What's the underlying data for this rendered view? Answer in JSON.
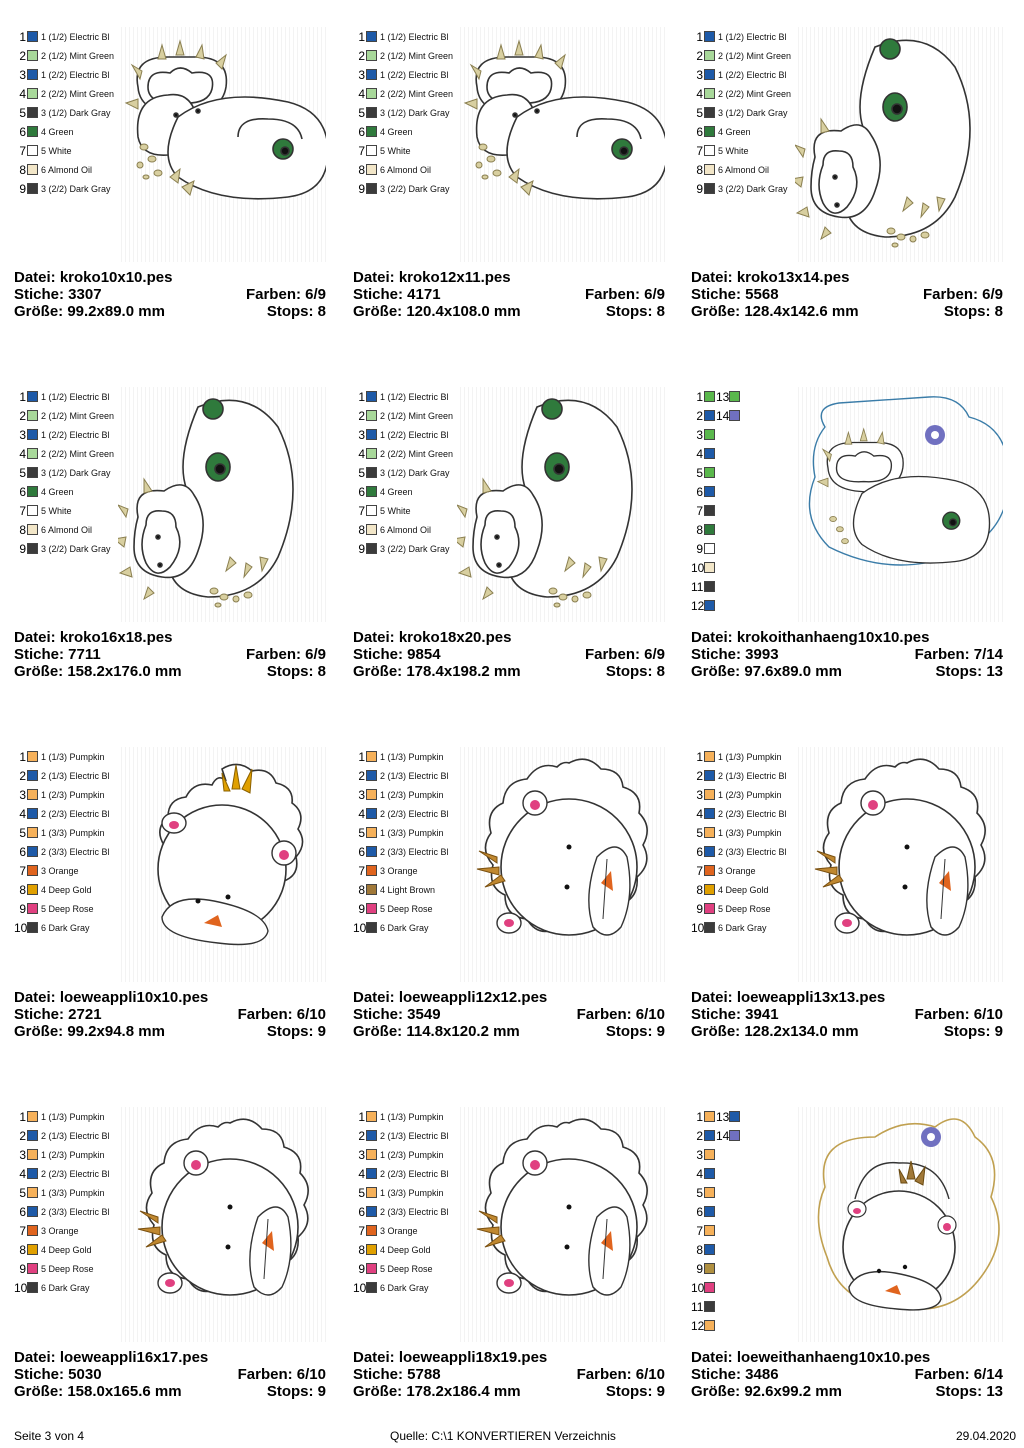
{
  "colors": {
    "blue": "#1e5aa8",
    "mint": "#a8d89a",
    "darkgray": "#3b3b3b",
    "green": "#2f7a3c",
    "white": "#ffffff",
    "almond": "#f2e6c8",
    "pumpkin": "#f6b15a",
    "orange": "#e0641e",
    "gold": "#e0a000",
    "rose": "#e04080",
    "brown": "#a07838",
    "brightgreen": "#5ab84c",
    "purple": "#7070c0",
    "olive": "#b09040"
  },
  "cards": [
    {
      "file": "Datei: kroko10x10.pes",
      "stiche": "Stiche: 3307",
      "farben": "Farben: 6/9",
      "groesse": "Größe: 99.2x89.0 mm",
      "stops": "Stops: 8",
      "art": "kroko-a",
      "list": [
        {
          "n": "1",
          "label": "1 (1/2) Electric Bl",
          "c": "blue"
        },
        {
          "n": "2",
          "label": "2 (1/2) Mint Green",
          "c": "mint"
        },
        {
          "n": "3",
          "label": "1 (2/2) Electric Bl",
          "c": "blue"
        },
        {
          "n": "4",
          "label": "2 (2/2) Mint Green",
          "c": "mint"
        },
        {
          "n": "5",
          "label": "3 (1/2) Dark Gray",
          "c": "darkgray"
        },
        {
          "n": "6",
          "label": "4 Green",
          "c": "green"
        },
        {
          "n": "7",
          "label": "5 White",
          "c": "white"
        },
        {
          "n": "8",
          "label": "6 Almond Oil",
          "c": "almond"
        },
        {
          "n": "9",
          "label": "3 (2/2) Dark Gray",
          "c": "darkgray"
        }
      ]
    },
    {
      "file": "Datei: kroko12x11.pes",
      "stiche": "Stiche: 4171",
      "farben": "Farben: 6/9",
      "groesse": "Größe: 120.4x108.0 mm",
      "stops": "Stops: 8",
      "art": "kroko-a",
      "list": [
        {
          "n": "1",
          "label": "1 (1/2) Electric Bl",
          "c": "blue"
        },
        {
          "n": "2",
          "label": "2 (1/2) Mint Green",
          "c": "mint"
        },
        {
          "n": "3",
          "label": "1 (2/2) Electric Bl",
          "c": "blue"
        },
        {
          "n": "4",
          "label": "2 (2/2) Mint Green",
          "c": "mint"
        },
        {
          "n": "5",
          "label": "3 (1/2) Dark Gray",
          "c": "darkgray"
        },
        {
          "n": "6",
          "label": "4 Green",
          "c": "green"
        },
        {
          "n": "7",
          "label": "5 White",
          "c": "white"
        },
        {
          "n": "8",
          "label": "6 Almond Oil",
          "c": "almond"
        },
        {
          "n": "9",
          "label": "3 (2/2) Dark Gray",
          "c": "darkgray"
        }
      ]
    },
    {
      "file": "Datei: kroko13x14.pes",
      "stiche": "Stiche: 5568",
      "farben": "Farben: 6/9",
      "groesse": "Größe: 128.4x142.6 mm",
      "stops": "Stops: 8",
      "art": "kroko-b",
      "list": [
        {
          "n": "1",
          "label": "1 (1/2) Electric Bl",
          "c": "blue"
        },
        {
          "n": "2",
          "label": "2 (1/2) Mint Green",
          "c": "mint"
        },
        {
          "n": "3",
          "label": "1 (2/2) Electric Bl",
          "c": "blue"
        },
        {
          "n": "4",
          "label": "2 (2/2) Mint Green",
          "c": "mint"
        },
        {
          "n": "5",
          "label": "3 (1/2) Dark Gray",
          "c": "darkgray"
        },
        {
          "n": "6",
          "label": "4 Green",
          "c": "green"
        },
        {
          "n": "7",
          "label": "5 White",
          "c": "white"
        },
        {
          "n": "8",
          "label": "6 Almond Oil",
          "c": "almond"
        },
        {
          "n": "9",
          "label": "3 (2/2) Dark Gray",
          "c": "darkgray"
        }
      ]
    },
    {
      "file": "Datei: kroko16x18.pes",
      "stiche": "Stiche: 7711",
      "farben": "Farben: 6/9",
      "groesse": "Größe: 158.2x176.0 mm",
      "stops": "Stops: 8",
      "art": "kroko-b",
      "list": [
        {
          "n": "1",
          "label": "1 (1/2) Electric Bl",
          "c": "blue"
        },
        {
          "n": "2",
          "label": "2 (1/2) Mint Green",
          "c": "mint"
        },
        {
          "n": "3",
          "label": "1 (2/2) Electric Bl",
          "c": "blue"
        },
        {
          "n": "4",
          "label": "2 (2/2) Mint Green",
          "c": "mint"
        },
        {
          "n": "5",
          "label": "3 (1/2) Dark Gray",
          "c": "darkgray"
        },
        {
          "n": "6",
          "label": "4 Green",
          "c": "green"
        },
        {
          "n": "7",
          "label": "5 White",
          "c": "white"
        },
        {
          "n": "8",
          "label": "6 Almond Oil",
          "c": "almond"
        },
        {
          "n": "9",
          "label": "3 (2/2) Dark Gray",
          "c": "darkgray"
        }
      ]
    },
    {
      "file": "Datei: kroko18x20.pes",
      "stiche": "Stiche: 9854",
      "farben": "Farben: 6/9",
      "groesse": "Größe: 178.4x198.2 mm",
      "stops": "Stops: 8",
      "art": "kroko-b",
      "list": [
        {
          "n": "1",
          "label": "1 (1/2) Electric Bl",
          "c": "blue"
        },
        {
          "n": "2",
          "label": "2 (1/2) Mint Green",
          "c": "mint"
        },
        {
          "n": "3",
          "label": "1 (2/2) Electric Bl",
          "c": "blue"
        },
        {
          "n": "4",
          "label": "2 (2/2) Mint Green",
          "c": "mint"
        },
        {
          "n": "5",
          "label": "3 (1/2) Dark Gray",
          "c": "darkgray"
        },
        {
          "n": "6",
          "label": "4 Green",
          "c": "green"
        },
        {
          "n": "7",
          "label": "5 White",
          "c": "white"
        },
        {
          "n": "8",
          "label": "6 Almond Oil",
          "c": "almond"
        },
        {
          "n": "9",
          "label": "3 (2/2) Dark Gray",
          "c": "darkgray"
        }
      ]
    },
    {
      "file": "Datei: krokoithanhaeng10x10.pes",
      "stiche": "Stiche: 3993",
      "farben": "Farben: 7/14",
      "groesse": "Größe: 97.6x89.0 mm",
      "stops": "Stops: 13",
      "art": "kroko-hang",
      "list": [
        {
          "n": "1",
          "c": "brightgreen",
          "extra": "13",
          "extraC": "brightgreen"
        },
        {
          "n": "2",
          "c": "blue",
          "extra": "14",
          "extraC": "purple"
        },
        {
          "n": "3",
          "c": "brightgreen"
        },
        {
          "n": "4",
          "c": "blue"
        },
        {
          "n": "5",
          "c": "brightgreen"
        },
        {
          "n": "6",
          "c": "blue"
        },
        {
          "n": "7",
          "c": "darkgray"
        },
        {
          "n": "8",
          "c": "green"
        },
        {
          "n": "9",
          "c": "white"
        },
        {
          "n": "10",
          "c": "almond"
        },
        {
          "n": "11",
          "c": "darkgray"
        },
        {
          "n": "12",
          "c": "blue"
        }
      ]
    },
    {
      "file": "Datei: loeweappli10x10.pes",
      "stiche": "Stiche: 2721",
      "farben": "Farben: 6/10",
      "groesse": "Größe: 99.2x94.8 mm",
      "stops": "Stops: 9",
      "art": "loewe-a",
      "list": [
        {
          "n": "1",
          "label": "1 (1/3) Pumpkin",
          "c": "pumpkin"
        },
        {
          "n": "2",
          "label": "2 (1/3) Electric Bl",
          "c": "blue"
        },
        {
          "n": "3",
          "label": "1 (2/3) Pumpkin",
          "c": "pumpkin"
        },
        {
          "n": "4",
          "label": "2 (2/3) Electric Bl",
          "c": "blue"
        },
        {
          "n": "5",
          "label": "1 (3/3) Pumpkin",
          "c": "pumpkin"
        },
        {
          "n": "6",
          "label": "2 (3/3) Electric Bl",
          "c": "blue"
        },
        {
          "n": "7",
          "label": "3 Orange",
          "c": "orange"
        },
        {
          "n": "8",
          "label": "4 Deep Gold",
          "c": "gold"
        },
        {
          "n": "9",
          "label": "5 Deep Rose",
          "c": "rose"
        },
        {
          "n": "10",
          "label": "6 Dark Gray",
          "c": "darkgray"
        }
      ]
    },
    {
      "file": "Datei: loeweappli12x12.pes",
      "stiche": "Stiche: 3549",
      "farben": "Farben: 6/10",
      "groesse": "Größe: 114.8x120.2 mm",
      "stops": "Stops: 9",
      "art": "loewe-b",
      "list": [
        {
          "n": "1",
          "label": "1 (1/3) Pumpkin",
          "c": "pumpkin"
        },
        {
          "n": "2",
          "label": "2 (1/3) Electric Bl",
          "c": "blue"
        },
        {
          "n": "3",
          "label": "1 (2/3) Pumpkin",
          "c": "pumpkin"
        },
        {
          "n": "4",
          "label": "2 (2/3) Electric Bl",
          "c": "blue"
        },
        {
          "n": "5",
          "label": "1 (3/3) Pumpkin",
          "c": "pumpkin"
        },
        {
          "n": "6",
          "label": "2 (3/3) Electric Bl",
          "c": "blue"
        },
        {
          "n": "7",
          "label": "3 Orange",
          "c": "orange"
        },
        {
          "n": "8",
          "label": "4 Light Brown",
          "c": "brown"
        },
        {
          "n": "9",
          "label": "5 Deep Rose",
          "c": "rose"
        },
        {
          "n": "10",
          "label": "6 Dark Gray",
          "c": "darkgray"
        }
      ]
    },
    {
      "file": "Datei: loeweappli13x13.pes",
      "stiche": "Stiche: 3941",
      "farben": "Farben: 6/10",
      "groesse": "Größe: 128.2x134.0 mm",
      "stops": "Stops: 9",
      "art": "loewe-b",
      "list": [
        {
          "n": "1",
          "label": "1 (1/3) Pumpkin",
          "c": "pumpkin"
        },
        {
          "n": "2",
          "label": "2 (1/3) Electric Bl",
          "c": "blue"
        },
        {
          "n": "3",
          "label": "1 (2/3) Pumpkin",
          "c": "pumpkin"
        },
        {
          "n": "4",
          "label": "2 (2/3) Electric Bl",
          "c": "blue"
        },
        {
          "n": "5",
          "label": "1 (3/3) Pumpkin",
          "c": "pumpkin"
        },
        {
          "n": "6",
          "label": "2 (3/3) Electric Bl",
          "c": "blue"
        },
        {
          "n": "7",
          "label": "3 Orange",
          "c": "orange"
        },
        {
          "n": "8",
          "label": "4 Deep Gold",
          "c": "gold"
        },
        {
          "n": "9",
          "label": "5 Deep Rose",
          "c": "rose"
        },
        {
          "n": "10",
          "label": "6 Dark Gray",
          "c": "darkgray"
        }
      ]
    },
    {
      "file": "Datei: loeweappli16x17.pes",
      "stiche": "Stiche: 5030",
      "farben": "Farben: 6/10",
      "groesse": "Größe: 158.0x165.6 mm",
      "stops": "Stops: 9",
      "art": "loewe-b",
      "list": [
        {
          "n": "1",
          "label": "1 (1/3) Pumpkin",
          "c": "pumpkin"
        },
        {
          "n": "2",
          "label": "2 (1/3) Electric Bl",
          "c": "blue"
        },
        {
          "n": "3",
          "label": "1 (2/3) Pumpkin",
          "c": "pumpkin"
        },
        {
          "n": "4",
          "label": "2 (2/3) Electric Bl",
          "c": "blue"
        },
        {
          "n": "5",
          "label": "1 (3/3) Pumpkin",
          "c": "pumpkin"
        },
        {
          "n": "6",
          "label": "2 (3/3) Electric Bl",
          "c": "blue"
        },
        {
          "n": "7",
          "label": "3 Orange",
          "c": "orange"
        },
        {
          "n": "8",
          "label": "4 Deep Gold",
          "c": "gold"
        },
        {
          "n": "9",
          "label": "5 Deep Rose",
          "c": "rose"
        },
        {
          "n": "10",
          "label": "6 Dark Gray",
          "c": "darkgray"
        }
      ]
    },
    {
      "file": "Datei: loeweappli18x19.pes",
      "stiche": "Stiche: 5788",
      "farben": "Farben: 6/10",
      "groesse": "Größe: 178.2x186.4 mm",
      "stops": "Stops: 9",
      "art": "loewe-b",
      "list": [
        {
          "n": "1",
          "label": "1 (1/3) Pumpkin",
          "c": "pumpkin"
        },
        {
          "n": "2",
          "label": "2 (1/3) Electric Bl",
          "c": "blue"
        },
        {
          "n": "3",
          "label": "1 (2/3) Pumpkin",
          "c": "pumpkin"
        },
        {
          "n": "4",
          "label": "2 (2/3) Electric Bl",
          "c": "blue"
        },
        {
          "n": "5",
          "label": "1 (3/3) Pumpkin",
          "c": "pumpkin"
        },
        {
          "n": "6",
          "label": "2 (3/3) Electric Bl",
          "c": "blue"
        },
        {
          "n": "7",
          "label": "3 Orange",
          "c": "orange"
        },
        {
          "n": "8",
          "label": "4 Deep Gold",
          "c": "gold"
        },
        {
          "n": "9",
          "label": "5 Deep Rose",
          "c": "rose"
        },
        {
          "n": "10",
          "label": "6 Dark Gray",
          "c": "darkgray"
        }
      ]
    },
    {
      "file": "Datei: loeweithanhaeng10x10.pes",
      "stiche": "Stiche: 3486",
      "farben": "Farben: 6/14",
      "groesse": "Größe: 92.6x99.2 mm",
      "stops": "Stops: 13",
      "art": "loewe-hang",
      "list": [
        {
          "n": "1",
          "c": "pumpkin",
          "extra": "13",
          "extraC": "blue"
        },
        {
          "n": "2",
          "c": "blue",
          "extra": "14",
          "extraC": "purple"
        },
        {
          "n": "3",
          "c": "pumpkin"
        },
        {
          "n": "4",
          "c": "blue"
        },
        {
          "n": "5",
          "c": "pumpkin"
        },
        {
          "n": "6",
          "c": "blue"
        },
        {
          "n": "7",
          "c": "pumpkin"
        },
        {
          "n": "8",
          "c": "blue"
        },
        {
          "n": "9",
          "c": "olive"
        },
        {
          "n": "10",
          "c": "rose"
        },
        {
          "n": "11",
          "c": "darkgray"
        },
        {
          "n": "12",
          "c": "pumpkin"
        }
      ]
    }
  ],
  "footer": {
    "page": "Seite 3 von 4",
    "source": "Quelle: C:\\1 KONVERTIEREN Verzeichnis",
    "date": "29.04.2020"
  }
}
